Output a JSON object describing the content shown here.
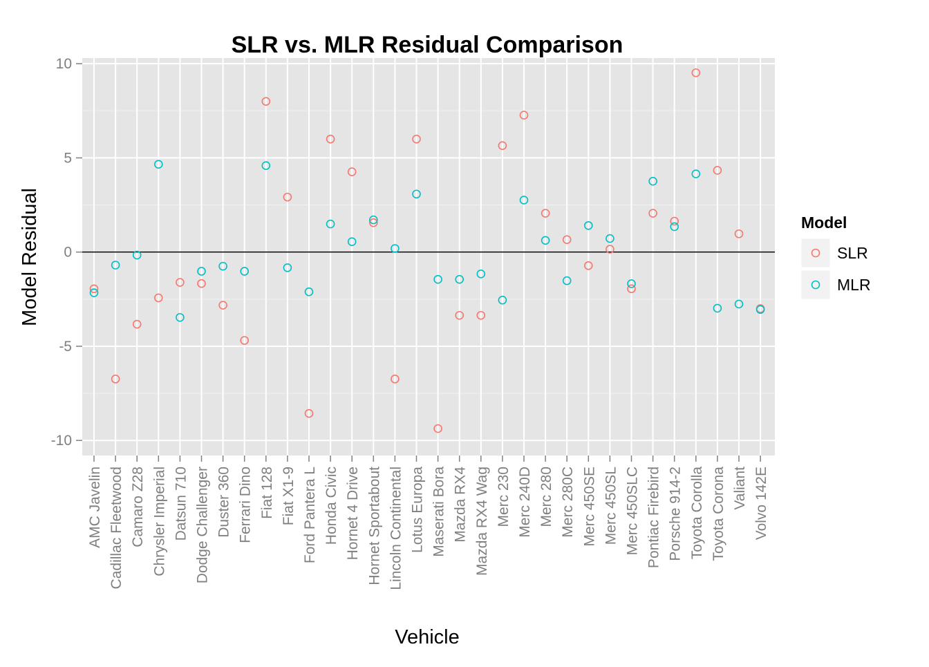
{
  "chart_data": {
    "type": "scatter",
    "title": "SLR vs. MLR Residual Comparison",
    "xlabel": "Vehicle",
    "ylabel": "Model Residual",
    "ylim": [
      -10.8,
      10.3
    ],
    "yticks": [
      -10,
      -5,
      0,
      5,
      10
    ],
    "ytick_labels": [
      "-10",
      "-5",
      "0",
      "5",
      "10"
    ],
    "hline": 0,
    "grid": true,
    "legend_position": "right",
    "legend_title": "Model",
    "categories": [
      "AMC Javelin",
      "Cadillac Fleetwood",
      "Camaro Z28",
      "Chrysler Imperial",
      "Datsun 710",
      "Dodge Challenger",
      "Duster 360",
      "Ferrari Dino",
      "Fiat 128",
      "Fiat X1-9",
      "Ford Pantera L",
      "Honda Civic",
      "Hornet 4 Drive",
      "Hornet Sportabout",
      "Lincoln Continental",
      "Lotus Europa",
      "Maserati Bora",
      "Mazda RX4",
      "Mazda RX4 Wag",
      "Merc 230",
      "Merc 240D",
      "Merc 280",
      "Merc 280C",
      "Merc 450SE",
      "Merc 450SL",
      "Merc 450SLC",
      "Pontiac Firebird",
      "Porsche 914-2",
      "Toyota Corolla",
      "Toyota Corona",
      "Valiant",
      "Volvo 142E"
    ],
    "series": [
      {
        "name": "SLR",
        "color": "#F8766D",
        "values": [
          -1.95,
          -6.74,
          -3.83,
          -2.43,
          -1.61,
          -1.67,
          -2.82,
          -4.69,
          8.0,
          2.92,
          -8.57,
          6.0,
          4.26,
          1.56,
          -6.74,
          6.0,
          -9.37,
          -3.36,
          -3.36,
          5.65,
          7.27,
          2.06,
          0.66,
          -0.72,
          0.15,
          -1.95,
          2.06,
          1.64,
          9.52,
          4.34,
          0.97,
          -3.0
        ]
      },
      {
        "name": "MLR",
        "color": "#00BFC4",
        "values": [
          -2.16,
          -0.69,
          -0.16,
          4.66,
          -3.47,
          -1.02,
          -0.75,
          -1.02,
          4.59,
          -0.83,
          -2.11,
          1.49,
          0.55,
          1.71,
          0.19,
          3.08,
          -1.45,
          -1.45,
          -1.16,
          -2.55,
          2.76,
          0.62,
          -1.52,
          1.41,
          0.72,
          -1.68,
          3.76,
          1.35,
          4.15,
          -2.98,
          -2.76,
          -3.05
        ]
      }
    ]
  }
}
